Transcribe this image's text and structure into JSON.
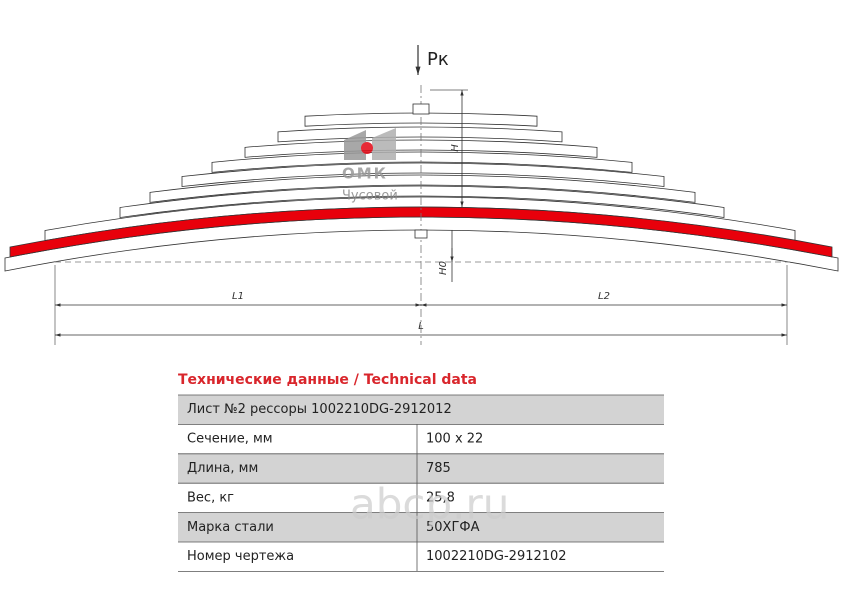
{
  "drawing": {
    "load_label": "Pк",
    "dimensions": {
      "h": "H",
      "h0": "H0",
      "l1": "L1",
      "l2": "L2",
      "l": "L"
    }
  },
  "logo": {
    "brand": "ОМК",
    "city": "Чусовой"
  },
  "table": {
    "title": "Технические данные / Technical data",
    "header": "Лист №2 рессоры 1002210DG-2912012",
    "rows": [
      [
        "Сечение, мм",
        "100 x 22"
      ],
      [
        "Длина, мм",
        "785"
      ],
      [
        "Вес, кг",
        "25,8"
      ],
      [
        "Марка стали",
        "50ХГФА"
      ],
      [
        "Номер чертежа",
        "1002210DG-2912102"
      ]
    ]
  },
  "watermark": "abcp.ru"
}
